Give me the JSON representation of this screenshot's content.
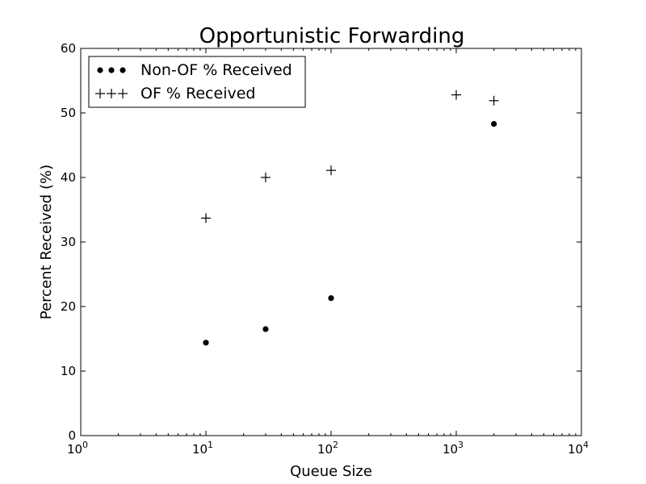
{
  "chart_data": {
    "type": "scatter",
    "title": "Opportunistic Forwarding",
    "xlabel": "Queue Size",
    "ylabel": "Percent Received (%)",
    "xscale": "log",
    "xlim": [
      1,
      10000
    ],
    "ylim": [
      0,
      60
    ],
    "x_ticks": [
      {
        "value": 1,
        "base": "10",
        "exp": "0"
      },
      {
        "value": 10,
        "base": "10",
        "exp": "1"
      },
      {
        "value": 100,
        "base": "10",
        "exp": "2"
      },
      {
        "value": 1000,
        "base": "10",
        "exp": "3"
      },
      {
        "value": 10000,
        "base": "10",
        "exp": "4"
      }
    ],
    "y_ticks": [
      0,
      10,
      20,
      30,
      40,
      50,
      60
    ],
    "grid": false,
    "legend_position": "top-left",
    "series": [
      {
        "name": "Non-OF % Received",
        "marker": "circle",
        "x": [
          10,
          30,
          100,
          2000
        ],
        "y": [
          14.4,
          16.5,
          21.3,
          48.3
        ]
      },
      {
        "name": "OF % Received",
        "marker": "plus",
        "x": [
          10,
          30,
          100,
          1000,
          2000
        ],
        "y": [
          33.7,
          40.0,
          41.1,
          52.8,
          51.9
        ]
      }
    ]
  }
}
